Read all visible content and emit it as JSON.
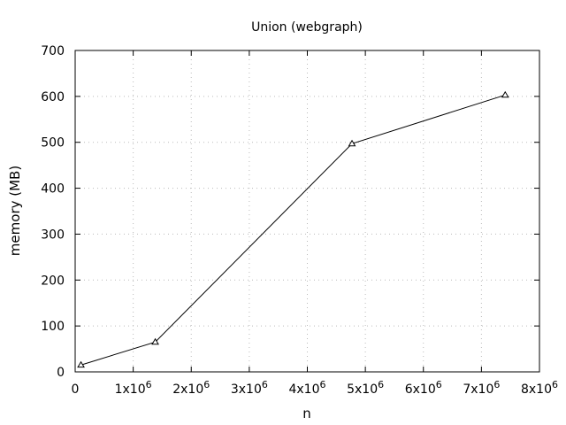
{
  "chart_data": {
    "type": "line",
    "title": "Union (webgraph)",
    "xlabel": "n",
    "ylabel": "memory (MB)",
    "xlim": [
      0,
      8000000
    ],
    "ylim": [
      0,
      700
    ],
    "grid": true,
    "x_ticks": [
      {
        "value": 0,
        "base": "0",
        "exp": ""
      },
      {
        "value": 1000000,
        "base": "1x10",
        "exp": "6"
      },
      {
        "value": 2000000,
        "base": "2x10",
        "exp": "6"
      },
      {
        "value": 3000000,
        "base": "3x10",
        "exp": "6"
      },
      {
        "value": 4000000,
        "base": "4x10",
        "exp": "6"
      },
      {
        "value": 5000000,
        "base": "5x10",
        "exp": "6"
      },
      {
        "value": 6000000,
        "base": "6x10",
        "exp": "6"
      },
      {
        "value": 7000000,
        "base": "7x10",
        "exp": "6"
      },
      {
        "value": 8000000,
        "base": "8x10",
        "exp": "6"
      }
    ],
    "y_ticks": [
      0,
      100,
      200,
      300,
      400,
      500,
      600,
      700
    ],
    "series": [
      {
        "marker": "triangle",
        "color": "#000000",
        "x": [
          100000,
          1380000,
          4770000,
          7410000
        ],
        "y": [
          15,
          65,
          497,
          603
        ]
      }
    ]
  }
}
